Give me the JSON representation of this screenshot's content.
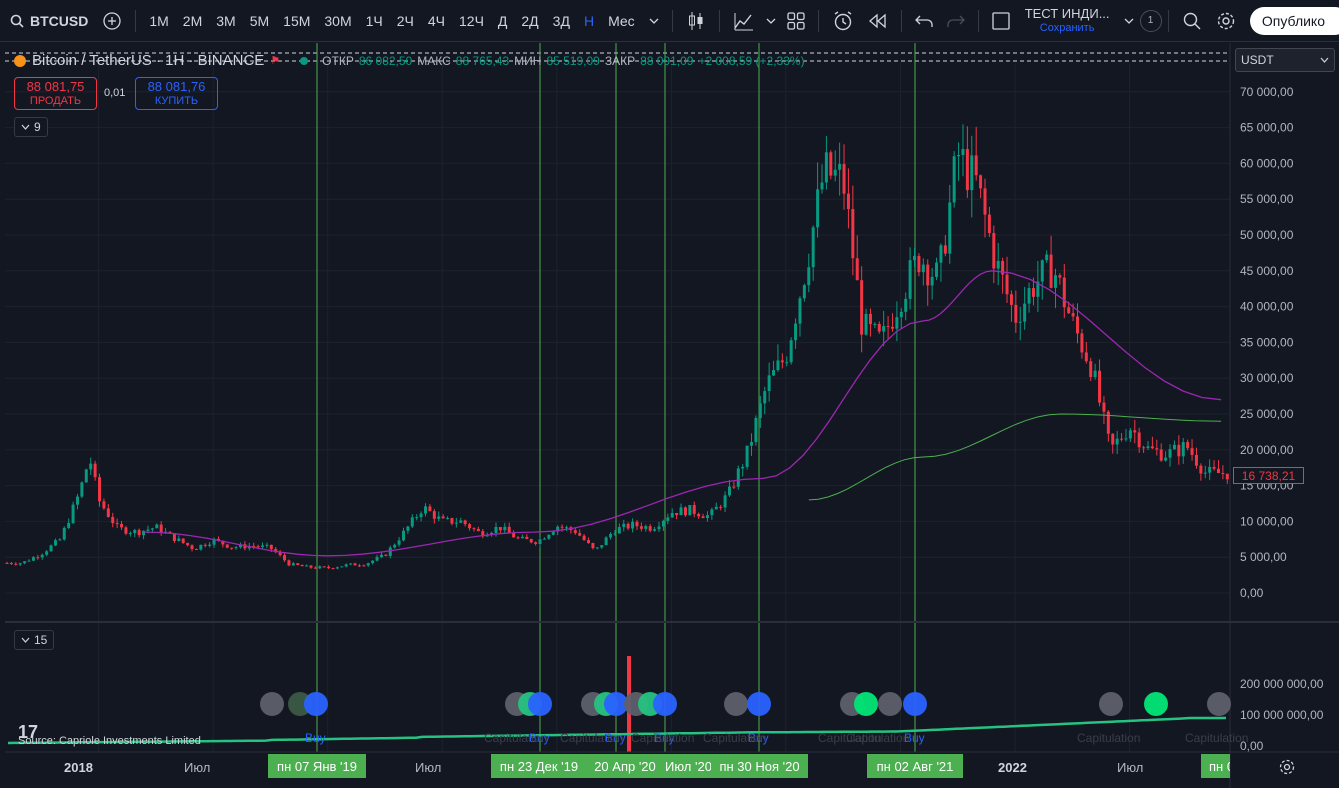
{
  "toolbar": {
    "symbol": "BTCUSD",
    "intervals": [
      "1М",
      "2М",
      "3М",
      "5М",
      "15М",
      "30М",
      "1Ч",
      "2Ч",
      "4Ч",
      "12Ч",
      "Д",
      "2Д",
      "3Д",
      "Н",
      "Мес"
    ],
    "active_interval": "Н",
    "layout_title": "ТЕСТ ИНДИ...",
    "layout_subtitle": "Сохранить",
    "layout_count": "1",
    "publish_label": "Опублико"
  },
  "legend": {
    "title": "Bitcoin / TetherUS · 1H · BINANCE",
    "open_label": "ОТКР",
    "open_value": "86 082,50",
    "high_label": "МАКС",
    "high_value": "88 765,43",
    "low_label": "МИН",
    "low_value": "85 519,09",
    "close_label": "ЗАКР",
    "close_value": "88 091,09",
    "change": "+2 008,59 (+2,33%)"
  },
  "trade": {
    "sell_price": "88 081,75",
    "sell_label": "ПРОДАТЬ",
    "spread": "0,01",
    "buy_price": "88 081,76",
    "buy_label": "КУПИТЬ"
  },
  "indicators": {
    "main_count": "9",
    "sub_count": "15"
  },
  "currency": "USDT",
  "last_price": "16 738,21",
  "price_axis": [
    "70 000,00",
    "65 000,00",
    "60 000,00",
    "55 000,00",
    "50 000,00",
    "45 000,00",
    "40 000,00",
    "35 000,00",
    "30 000,00",
    "25 000,00",
    "20 000,00",
    "15 000,00",
    "10 000,00",
    "5 000,00",
    "0,00"
  ],
  "sub_axis": [
    "200 000 000,00",
    "100 000 000,00",
    "0,00"
  ],
  "time_axis": [
    "2018",
    "Июл",
    "Июл",
    "Июл '20",
    "2022",
    "Июл"
  ],
  "date_labels": [
    "пн 07 Янв '19",
    "пн 23 Дек '19",
    "20 Апр '20",
    "пн 30 Ноя '20",
    "пн 02 Авг '21",
    "пн 0"
  ],
  "signal_labels": [
    "Buy",
    "Buy",
    "Buy",
    "Buy",
    "Buy",
    "Buy"
  ],
  "capitulation_labels": [
    "Capitulation",
    "Capitulation",
    "Capitulation",
    "Capitulation",
    "Capitulation",
    "Capitulation",
    "Capitulation",
    "Capitulation",
    "Capitulation"
  ],
  "source_text": "Source: Capriole Investments Limited",
  "colors": {
    "up": "#089981",
    "down": "#f23645",
    "accent": "#2962ff",
    "ma_purple": "#9c27b0",
    "ma_green": "#4caf50",
    "vline": "#4caf50"
  },
  "chart_data": {
    "type": "candlestick",
    "interval": "weekly",
    "y_unit": "USDT",
    "ylim": [
      0,
      70000
    ],
    "weekly_close_path": [
      [
        "2017-09",
        4200
      ],
      [
        "2017-10",
        5500
      ],
      [
        "2017-11",
        7500
      ],
      [
        "2017-12",
        14000
      ],
      [
        "2017-12-17",
        19000
      ],
      [
        "2018-01",
        13000
      ],
      [
        "2018-02",
        9000
      ],
      [
        "2018-03",
        8500
      ],
      [
        "2018-04",
        9200
      ],
      [
        "2018-05",
        7600
      ],
      [
        "2018-06",
        6200
      ],
      [
        "2018-07",
        7400
      ],
      [
        "2018-08",
        6400
      ],
      [
        "2018-09",
        6600
      ],
      [
        "2018-10",
        6300
      ],
      [
        "2018-11",
        4000
      ],
      [
        "2018-12",
        3600
      ],
      [
        "2019-01",
        3500
      ],
      [
        "2019-02",
        3900
      ],
      [
        "2019-03",
        4100
      ],
      [
        "2019-04",
        5300
      ],
      [
        "2019-05",
        8500
      ],
      [
        "2019-06",
        12000
      ],
      [
        "2019-07",
        10000
      ],
      [
        "2019-08",
        10000
      ],
      [
        "2019-09",
        8300
      ],
      [
        "2019-10",
        9200
      ],
      [
        "2019-11",
        7500
      ],
      [
        "2019-12",
        7200
      ],
      [
        "2020-01",
        9400
      ],
      [
        "2020-02",
        8600
      ],
      [
        "2020-03",
        5800
      ],
      [
        "2020-04",
        8800
      ],
      [
        "2020-05",
        9500
      ],
      [
        "2020-06",
        9100
      ],
      [
        "2020-07",
        11300
      ],
      [
        "2020-08",
        11600
      ],
      [
        "2020-09",
        10700
      ],
      [
        "2020-10",
        13800
      ],
      [
        "2020-11",
        19700
      ],
      [
        "2020-12",
        29000
      ],
      [
        "2021-01",
        33100
      ],
      [
        "2021-02",
        45100
      ],
      [
        "2021-03",
        58800
      ],
      [
        "2021-04",
        57700
      ],
      [
        "2021-05",
        37300
      ],
      [
        "2021-06",
        35000
      ],
      [
        "2021-07",
        41500
      ],
      [
        "2021-08",
        47100
      ],
      [
        "2021-09",
        43800
      ],
      [
        "2021-10",
        61300
      ],
      [
        "2021-11",
        57000
      ],
      [
        "2021-12",
        46200
      ],
      [
        "2022-01",
        38500
      ],
      [
        "2022-02",
        43200
      ],
      [
        "2022-03",
        45500
      ],
      [
        "2022-04",
        37700
      ],
      [
        "2022-05",
        31800
      ],
      [
        "2022-06",
        19900
      ],
      [
        "2022-07",
        23300
      ],
      [
        "2022-08",
        20000
      ],
      [
        "2022-09",
        19400
      ],
      [
        "2022-10",
        20500
      ],
      [
        "2022-11",
        16738
      ]
    ],
    "series": [
      {
        "name": "MA (purple)",
        "values": [
          [
            2018.2,
            8500
          ],
          [
            2019.0,
            5200
          ],
          [
            2019.9,
            8500
          ],
          [
            2020.9,
            16000
          ],
          [
            2021.6,
            38000
          ],
          [
            2021.9,
            45000
          ],
          [
            2022.9,
            27000
          ]
        ]
      },
      {
        "name": "MA (green)",
        "values": [
          [
            2021.1,
            13000
          ],
          [
            2021.6,
            19000
          ],
          [
            2022.2,
            25000
          ],
          [
            2022.9,
            24000
          ]
        ]
      }
    ]
  }
}
